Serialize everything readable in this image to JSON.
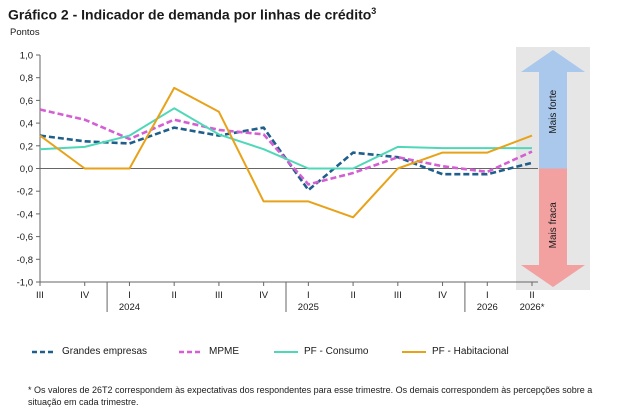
{
  "header": {
    "title": "Gráfico 2 - Indicador de demanda por linhas de crédito",
    "title_sup": "3",
    "units": "Pontos"
  },
  "chart_data": {
    "type": "line",
    "ylim": [
      -1.0,
      1.0
    ],
    "y_ticks": [
      "1,0",
      "0,8",
      "0,6",
      "0,4",
      "0,2",
      "0,0",
      "-0,2",
      "-0,4",
      "-0,6",
      "-0,8",
      "-1,0"
    ],
    "y_tick_values": [
      1.0,
      0.8,
      0.6,
      0.4,
      0.2,
      0.0,
      -0.2,
      -0.4,
      -0.6,
      -0.8,
      -1.0
    ],
    "categories": [
      "III",
      "IV",
      "I",
      "II",
      "III",
      "IV",
      "I",
      "II",
      "III",
      "IV",
      "I",
      "II"
    ],
    "year_labels": [
      {
        "label": "2024",
        "at_index": 2
      },
      {
        "label": "2025",
        "at_index": 6
      },
      {
        "label": "2026",
        "at_index": 10
      },
      {
        "label": "2026*",
        "at_index": 11
      }
    ],
    "series": [
      {
        "name": "Grandes empresas",
        "color": "#1f5f8b",
        "dash": "dashed",
        "values": [
          0.29,
          0.24,
          0.22,
          0.36,
          0.29,
          0.36,
          -0.19,
          0.14,
          0.1,
          -0.05,
          -0.05,
          0.05
        ]
      },
      {
        "name": "MPME",
        "color": "#d35fd3",
        "dash": "dashed",
        "values": [
          0.52,
          0.43,
          0.26,
          0.43,
          0.34,
          0.3,
          -0.14,
          -0.04,
          0.1,
          0.02,
          -0.03,
          0.15
        ]
      },
      {
        "name": "PF - Consumo",
        "color": "#4fd8b8",
        "dash": "solid",
        "values": [
          0.17,
          0.19,
          0.29,
          0.53,
          0.3,
          0.17,
          0.0,
          0.0,
          0.19,
          0.18,
          0.18,
          0.18
        ]
      },
      {
        "name": "PF - Habitacional",
        "color": "#e8a21a",
        "dash": "solid",
        "values": [
          0.29,
          0.0,
          0.0,
          0.71,
          0.5,
          -0.29,
          -0.29,
          -0.43,
          0.0,
          0.14,
          0.14,
          0.29
        ]
      }
    ],
    "arrow_labels": {
      "upper": "Mais forte",
      "lower": "Mais fraca"
    },
    "arrow_colors": {
      "upper": "#a9c8ec",
      "lower": "#f2a0a0",
      "band": "#e6e6e6"
    }
  },
  "footnote": {
    "text": "* Os valores de 26T2 correspondem às expectativas dos respondentes para esse trimestre. Os demais correspondem às percepções sobre a situação em cada trimestre."
  }
}
